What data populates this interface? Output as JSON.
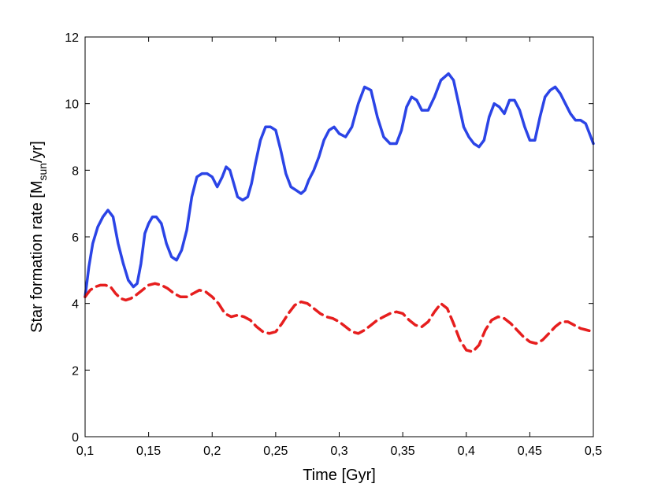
{
  "chart_data": {
    "type": "line",
    "title": "",
    "xlabel": "Time [Gyr]",
    "ylabel": {
      "prefix": "Star formation rate [M",
      "subscript": "sun",
      "suffix": "/yr]"
    },
    "xlim": [
      0.1,
      0.5
    ],
    "ylim": [
      0,
      12
    ],
    "x_ticks": [
      0.1,
      0.15,
      0.2,
      0.25,
      0.3,
      0.35,
      0.4,
      0.45,
      0.5
    ],
    "x_tick_labels": [
      "0,1",
      "0,15",
      "0,2",
      "0,25",
      "0,3",
      "0,35",
      "0,4",
      "0,45",
      "0,5"
    ],
    "y_ticks": [
      0,
      2,
      4,
      6,
      8,
      10,
      12
    ],
    "y_tick_labels": [
      "0",
      "2",
      "4",
      "6",
      "8",
      "10",
      "12"
    ],
    "grid": false,
    "legend": "none",
    "series": [
      {
        "color": "#2b44e6",
        "style": "solid",
        "x": [
          0.1,
          0.103,
          0.106,
          0.11,
          0.114,
          0.118,
          0.122,
          0.126,
          0.13,
          0.134,
          0.138,
          0.141,
          0.144,
          0.147,
          0.15,
          0.153,
          0.156,
          0.16,
          0.164,
          0.168,
          0.172,
          0.176,
          0.18,
          0.184,
          0.188,
          0.192,
          0.196,
          0.2,
          0.204,
          0.208,
          0.211,
          0.214,
          0.217,
          0.22,
          0.224,
          0.228,
          0.231,
          0.234,
          0.238,
          0.242,
          0.246,
          0.25,
          0.254,
          0.258,
          0.262,
          0.266,
          0.27,
          0.273,
          0.276,
          0.28,
          0.284,
          0.288,
          0.292,
          0.296,
          0.3,
          0.305,
          0.31,
          0.315,
          0.32,
          0.325,
          0.33,
          0.335,
          0.34,
          0.345,
          0.349,
          0.353,
          0.357,
          0.361,
          0.365,
          0.37,
          0.375,
          0.38,
          0.386,
          0.39,
          0.394,
          0.398,
          0.402,
          0.406,
          0.41,
          0.414,
          0.418,
          0.422,
          0.426,
          0.43,
          0.434,
          0.438,
          0.442,
          0.446,
          0.45,
          0.454,
          0.458,
          0.462,
          0.466,
          0.47,
          0.474,
          0.478,
          0.482,
          0.486,
          0.49,
          0.494,
          0.498,
          0.5
        ],
        "y": [
          4.2,
          5.1,
          5.8,
          6.3,
          6.6,
          6.8,
          6.6,
          5.8,
          5.2,
          4.7,
          4.5,
          4.6,
          5.2,
          6.1,
          6.4,
          6.6,
          6.6,
          6.4,
          5.8,
          5.4,
          5.3,
          5.6,
          6.2,
          7.2,
          7.8,
          7.9,
          7.9,
          7.8,
          7.5,
          7.8,
          8.1,
          8.0,
          7.6,
          7.2,
          7.1,
          7.2,
          7.6,
          8.2,
          8.9,
          9.3,
          9.3,
          9.2,
          8.6,
          7.9,
          7.5,
          7.4,
          7.3,
          7.4,
          7.7,
          8.0,
          8.4,
          8.9,
          9.2,
          9.3,
          9.1,
          9.0,
          9.3,
          10.0,
          10.5,
          10.4,
          9.6,
          9.0,
          8.8,
          8.8,
          9.2,
          9.9,
          10.2,
          10.1,
          9.8,
          9.8,
          10.2,
          10.7,
          10.9,
          10.7,
          10.0,
          9.3,
          9.0,
          8.8,
          8.7,
          8.9,
          9.6,
          10.0,
          9.9,
          9.7,
          10.1,
          10.1,
          9.8,
          9.3,
          8.9,
          8.9,
          9.6,
          10.2,
          10.4,
          10.5,
          10.3,
          10.0,
          9.7,
          9.5,
          9.5,
          9.4,
          9.0,
          8.8
        ]
      },
      {
        "color": "#e61e1e",
        "style": "dashed",
        "x": [
          0.1,
          0.104,
          0.108,
          0.112,
          0.116,
          0.12,
          0.124,
          0.128,
          0.132,
          0.136,
          0.14,
          0.145,
          0.15,
          0.155,
          0.16,
          0.165,
          0.17,
          0.175,
          0.18,
          0.185,
          0.19,
          0.195,
          0.2,
          0.205,
          0.21,
          0.215,
          0.22,
          0.225,
          0.23,
          0.235,
          0.24,
          0.245,
          0.25,
          0.255,
          0.26,
          0.265,
          0.27,
          0.275,
          0.28,
          0.285,
          0.29,
          0.295,
          0.3,
          0.305,
          0.31,
          0.315,
          0.32,
          0.325,
          0.33,
          0.335,
          0.34,
          0.345,
          0.35,
          0.355,
          0.36,
          0.365,
          0.37,
          0.375,
          0.38,
          0.385,
          0.39,
          0.395,
          0.4,
          0.405,
          0.41,
          0.415,
          0.42,
          0.425,
          0.43,
          0.435,
          0.44,
          0.445,
          0.45,
          0.455,
          0.46,
          0.465,
          0.47,
          0.475,
          0.48,
          0.485,
          0.49,
          0.495,
          0.5
        ],
        "y": [
          4.2,
          4.4,
          4.5,
          4.55,
          4.55,
          4.5,
          4.3,
          4.15,
          4.1,
          4.15,
          4.25,
          4.4,
          4.55,
          4.6,
          4.55,
          4.45,
          4.3,
          4.2,
          4.2,
          4.3,
          4.4,
          4.35,
          4.2,
          4.0,
          3.7,
          3.6,
          3.65,
          3.6,
          3.5,
          3.3,
          3.15,
          3.1,
          3.15,
          3.4,
          3.7,
          3.95,
          4.05,
          4.0,
          3.85,
          3.7,
          3.6,
          3.55,
          3.45,
          3.3,
          3.15,
          3.1,
          3.2,
          3.35,
          3.5,
          3.6,
          3.7,
          3.75,
          3.7,
          3.5,
          3.35,
          3.3,
          3.45,
          3.75,
          4.0,
          3.85,
          3.4,
          2.9,
          2.6,
          2.55,
          2.75,
          3.2,
          3.5,
          3.6,
          3.55,
          3.4,
          3.2,
          3.0,
          2.85,
          2.8,
          2.9,
          3.1,
          3.3,
          3.45,
          3.45,
          3.35,
          3.25,
          3.2,
          3.15
        ]
      }
    ]
  }
}
